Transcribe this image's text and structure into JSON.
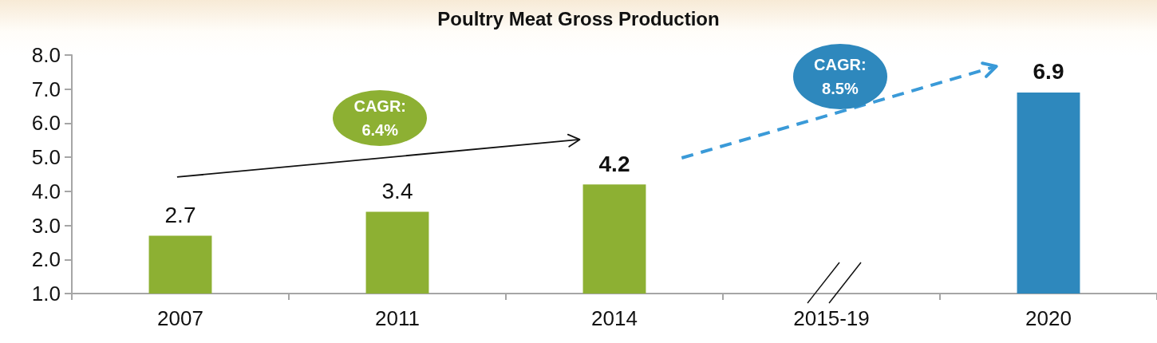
{
  "chart_data": {
    "type": "bar",
    "title": "Poultry Meat Gross Production",
    "categories": [
      "2007",
      "2011",
      "2014",
      "2015-19",
      "2020"
    ],
    "values": [
      2.7,
      3.4,
      4.2,
      null,
      6.9
    ],
    "colors": [
      "#8db033",
      "#8db033",
      "#8db033",
      null,
      "#2e88bd"
    ],
    "data_labels": true,
    "ylim": [
      1,
      8
    ],
    "yticks": [
      {
        "value": 1,
        "label": "1.0"
      },
      {
        "value": 2,
        "label": "2.0"
      },
      {
        "value": 3,
        "label": "3.0"
      },
      {
        "value": 4,
        "label": "4.0"
      },
      {
        "value": 5,
        "label": "5.0"
      },
      {
        "value": 6,
        "label": "6.0"
      },
      {
        "value": 7,
        "label": "7.0"
      },
      {
        "value": 8,
        "label": "8.0"
      }
    ],
    "annotations": [
      "CAGR: 6.4%",
      "CAGR: 8.5%"
    ]
  }
}
